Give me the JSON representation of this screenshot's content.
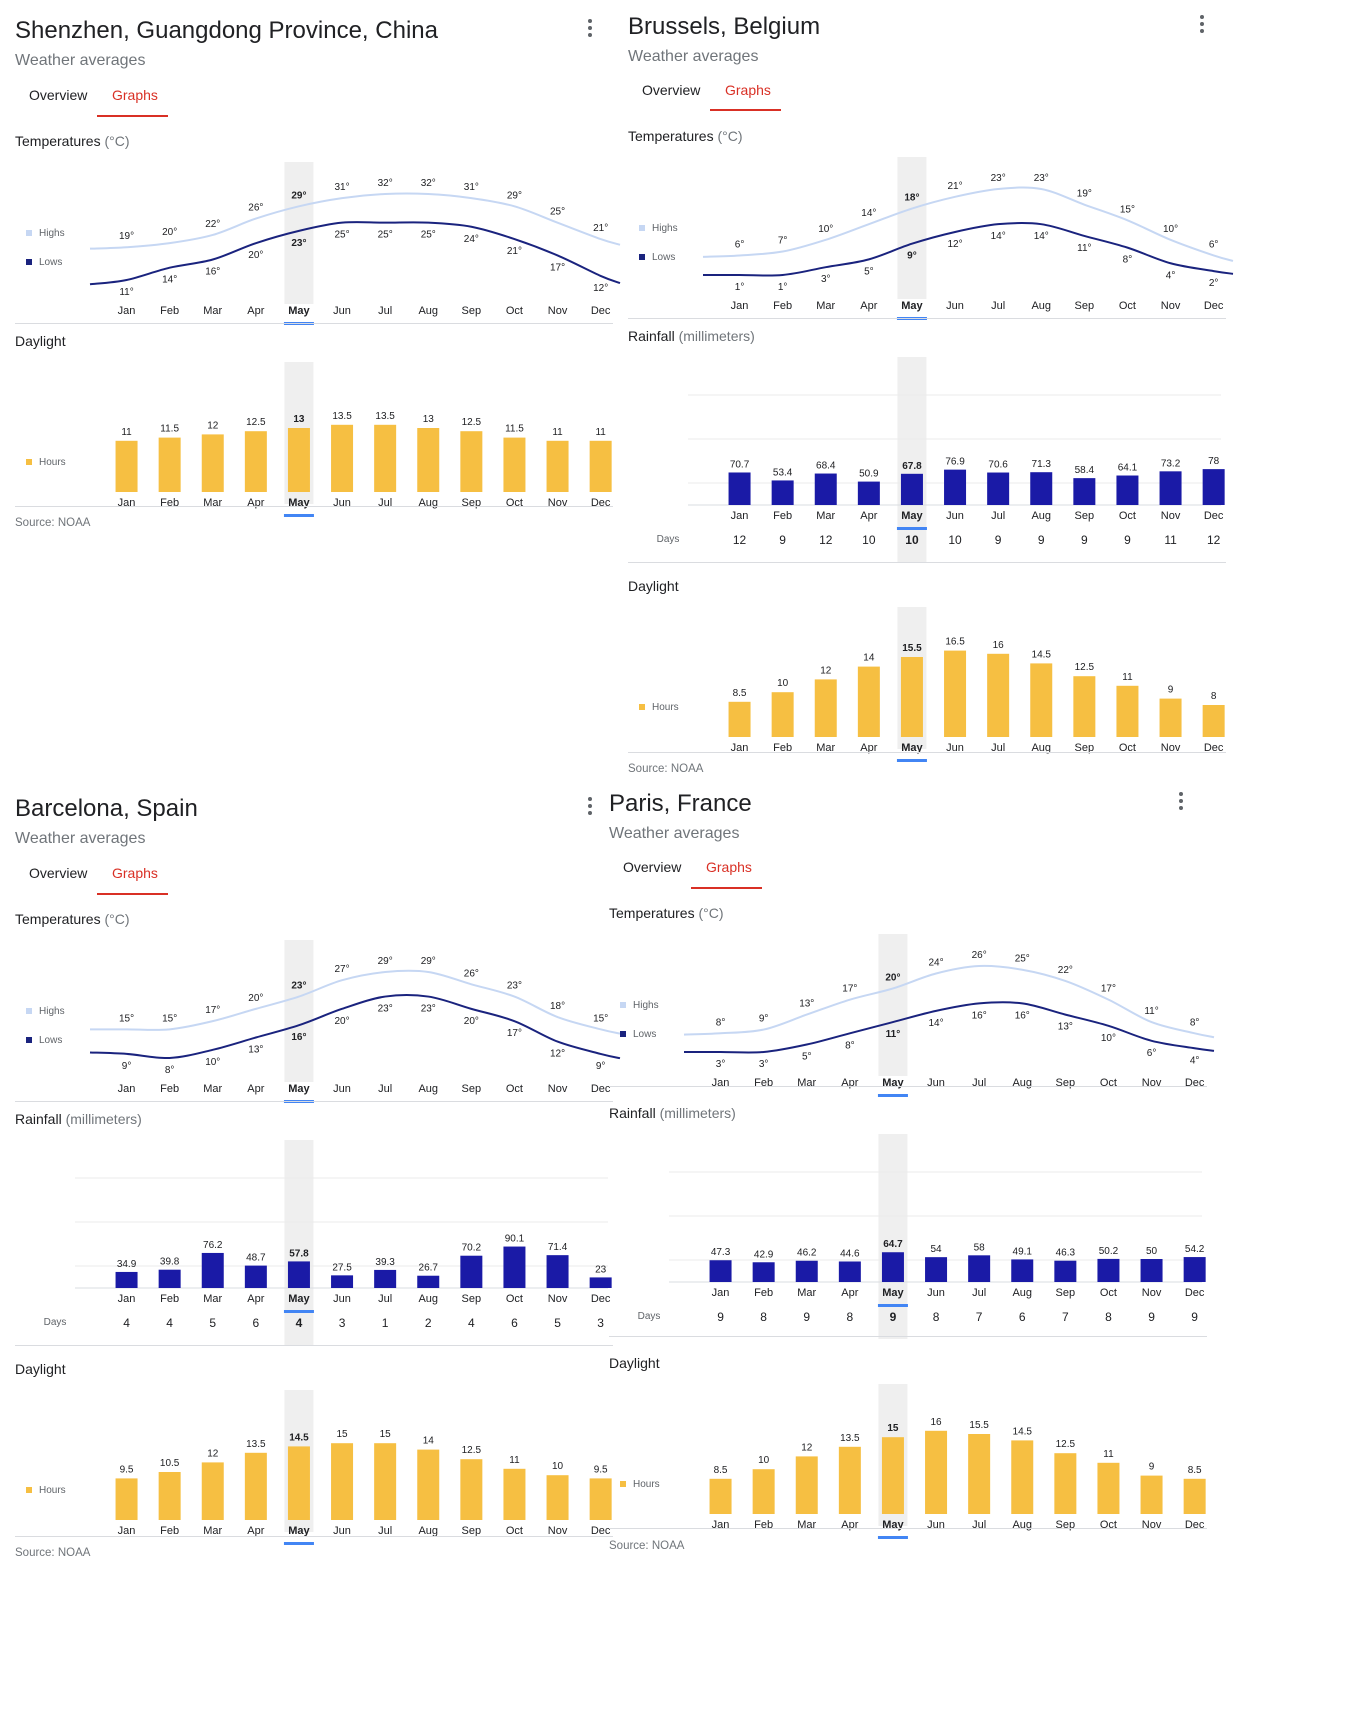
{
  "months": [
    "Jan",
    "Feb",
    "Mar",
    "Apr",
    "May",
    "Jun",
    "Jul",
    "Aug",
    "Sep",
    "Oct",
    "Nov",
    "Dec"
  ],
  "selected_month_index": 4,
  "tabs": {
    "overview": "Overview",
    "graphs": "Graphs"
  },
  "labels": {
    "subtitle": "Weather averages",
    "temperatures": "Temperatures",
    "temp_unit": "(°C)",
    "rainfall": "Rainfall",
    "rain_unit": "(millimeters)",
    "daylight": "Daylight",
    "highs": "Highs",
    "lows": "Lows",
    "hours": "Hours",
    "days": "Days",
    "source": "Source: NOAA"
  },
  "colors": {
    "highs_line": "#c6d7f3",
    "lows_line": "#1a237e",
    "rain_bar": "#1a1aa6",
    "daylight_bar": "#f6bf42",
    "selected": "#4285f4",
    "active_tab": "#d93025"
  },
  "cards": [
    {
      "title": "Shenzhen, Guangdong Province, China",
      "chart_data": [
        {
          "type": "line",
          "name": "Temperatures",
          "series": [
            {
              "name": "Highs",
              "values": [
                19,
                20,
                22,
                26,
                29,
                31,
                32,
                32,
                31,
                29,
                25,
                21
              ]
            },
            {
              "name": "Lows",
              "values": [
                11,
                14,
                16,
                20,
                23,
                25,
                25,
                25,
                24,
                21,
                17,
                12
              ]
            }
          ]
        },
        {
          "type": "bar",
          "name": "Daylight",
          "series": [
            {
              "name": "Hours",
              "values": [
                11,
                11.5,
                12,
                12.5,
                13,
                13.5,
                13.5,
                13,
                12.5,
                11.5,
                11,
                11
              ]
            }
          ]
        }
      ]
    },
    {
      "title": "Brussels, Belgium",
      "chart_data": [
        {
          "type": "line",
          "name": "Temperatures",
          "series": [
            {
              "name": "Highs",
              "values": [
                6,
                7,
                10,
                14,
                18,
                21,
                23,
                23,
                19,
                15,
                10,
                6
              ]
            },
            {
              "name": "Lows",
              "values": [
                1,
                1,
                3,
                5,
                9,
                12,
                14,
                14,
                11,
                8,
                4,
                2
              ]
            }
          ]
        },
        {
          "type": "bar",
          "name": "Rainfall",
          "series": [
            {
              "name": "Rainfall",
              "values": [
                70.7,
                53.4,
                68.4,
                50.9,
                67.8,
                76.9,
                70.6,
                71.3,
                58.4,
                64.1,
                73.2,
                78
              ]
            }
          ],
          "days": [
            12,
            9,
            12,
            10,
            10,
            10,
            9,
            9,
            9,
            9,
            11,
            12
          ]
        },
        {
          "type": "bar",
          "name": "Daylight",
          "series": [
            {
              "name": "Hours",
              "values": [
                8.5,
                10,
                12,
                14,
                15.5,
                16.5,
                16,
                14.5,
                12.5,
                11,
                9,
                8
              ]
            }
          ]
        }
      ]
    },
    {
      "title": "Barcelona, Spain",
      "chart_data": [
        {
          "type": "line",
          "name": "Temperatures",
          "series": [
            {
              "name": "Highs",
              "values": [
                15,
                15,
                17,
                20,
                23,
                27,
                29,
                29,
                26,
                23,
                18,
                15
              ]
            },
            {
              "name": "Lows",
              "values": [
                9,
                8,
                10,
                13,
                16,
                20,
                23,
                23,
                20,
                17,
                12,
                9
              ]
            }
          ]
        },
        {
          "type": "bar",
          "name": "Rainfall",
          "series": [
            {
              "name": "Rainfall",
              "values": [
                34.9,
                39.8,
                76.2,
                48.7,
                57.8,
                27.5,
                39.3,
                26.7,
                70.2,
                90.1,
                71.4,
                23
              ]
            }
          ],
          "days": [
            4,
            4,
            5,
            6,
            4,
            3,
            1,
            2,
            4,
            6,
            5,
            3
          ]
        },
        {
          "type": "bar",
          "name": "Daylight",
          "series": [
            {
              "name": "Hours",
              "values": [
                9.5,
                10.5,
                12,
                13.5,
                14.5,
                15,
                15,
                14,
                12.5,
                11,
                10,
                9.5
              ]
            }
          ]
        }
      ]
    },
    {
      "title": "Paris, France",
      "chart_data": [
        {
          "type": "line",
          "name": "Temperatures",
          "series": [
            {
              "name": "Highs",
              "values": [
                8,
                9,
                13,
                17,
                20,
                24,
                26,
                25,
                22,
                17,
                11,
                8
              ]
            },
            {
              "name": "Lows",
              "values": [
                3,
                3,
                5,
                8,
                11,
                14,
                16,
                16,
                13,
                10,
                6,
                4
              ]
            }
          ]
        },
        {
          "type": "bar",
          "name": "Rainfall",
          "series": [
            {
              "name": "Rainfall",
              "values": [
                47.3,
                42.9,
                46.2,
                44.6,
                64.7,
                54,
                58,
                49.1,
                46.3,
                50.2,
                50,
                54.2
              ]
            }
          ],
          "days": [
            9,
            8,
            9,
            8,
            9,
            8,
            7,
            6,
            7,
            8,
            9,
            9
          ]
        },
        {
          "type": "bar",
          "name": "Daylight",
          "series": [
            {
              "name": "Hours",
              "values": [
                8.5,
                10,
                12,
                13.5,
                15,
                16,
                15.5,
                14.5,
                12.5,
                11,
                9,
                8.5
              ]
            }
          ]
        }
      ]
    }
  ]
}
